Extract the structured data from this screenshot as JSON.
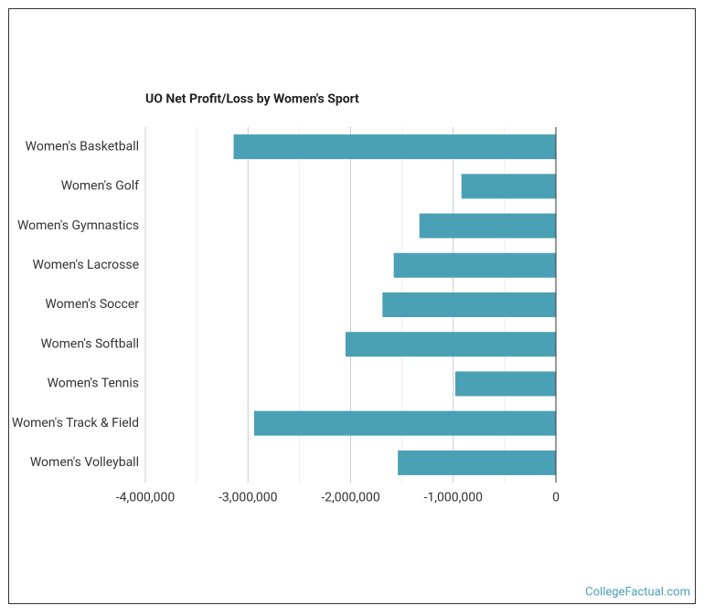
{
  "chart_data": {
    "type": "bar",
    "orientation": "horizontal",
    "title": "UO Net Profit/Loss by Women's Sport",
    "categories": [
      "Women's Basketball",
      "Women's Golf",
      "Women's Gymnastics",
      "Women's Lacrosse",
      "Women's Soccer",
      "Women's Softball",
      "Women's Tennis",
      "Women's Track & Field",
      "Women's Volleyball"
    ],
    "values": [
      -3140000,
      -920000,
      -1330000,
      -1580000,
      -1690000,
      -2050000,
      -980000,
      -2940000,
      -1540000
    ],
    "color": "#4aa0b5",
    "xlim": [
      -4000000,
      0
    ],
    "xticks": [
      {
        "value": -4000000,
        "label": "-4,000,000"
      },
      {
        "value": -3000000,
        "label": "-3,000,000"
      },
      {
        "value": -2000000,
        "label": "-2,000,000"
      },
      {
        "value": -1000000,
        "label": "-1,000,000"
      },
      0
    ],
    "minor_xticks": [
      -3500000,
      -2500000,
      -1500000,
      -500000
    ],
    "grid": true,
    "source": "CollegeFactual.com"
  }
}
